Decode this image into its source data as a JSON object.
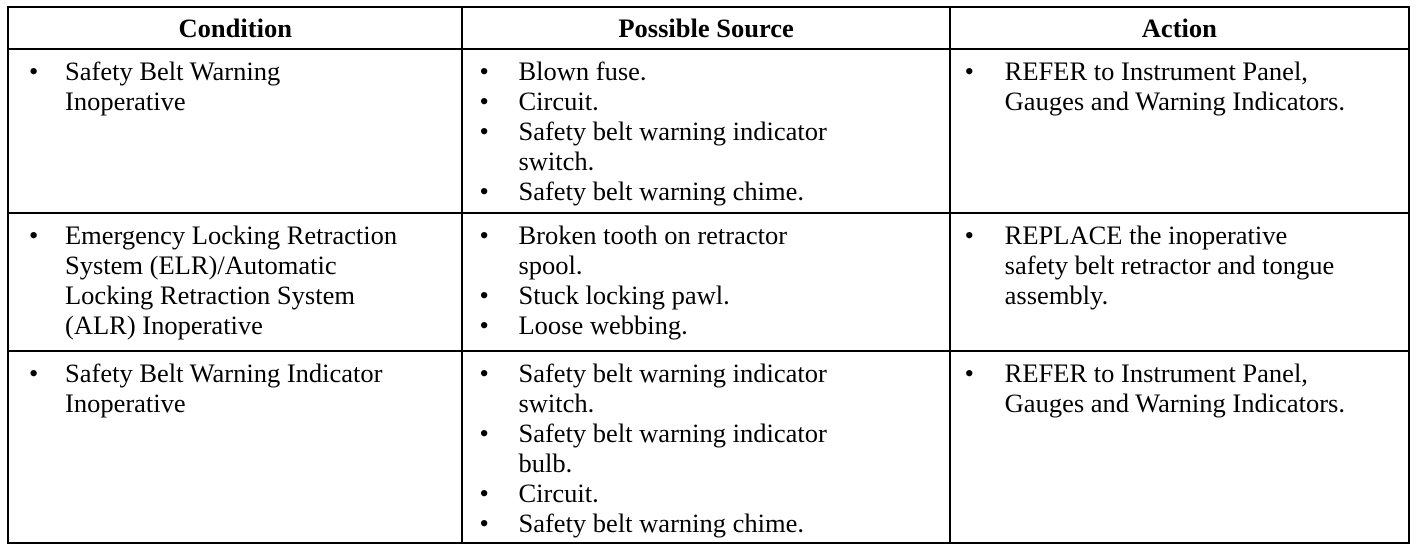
{
  "headers": [
    "Condition",
    "Possible Source",
    "Action"
  ],
  "bullet": "•",
  "rows": [
    {
      "condition": [
        "Safety Belt Warning\nInoperative"
      ],
      "sources": [
        "Blown fuse.",
        "Circuit.",
        "Safety belt warning indicator\nswitch.",
        "Safety belt warning chime."
      ],
      "actions": [
        "REFER to Instrument Panel,\nGauges and Warning Indicators."
      ]
    },
    {
      "condition": [
        "Emergency Locking Retraction\nSystem (ELR)/Automatic\nLocking Retraction System\n(ALR) Inoperative"
      ],
      "sources": [
        "Broken tooth on retractor\nspool.",
        "Stuck locking pawl.",
        "Loose webbing."
      ],
      "actions": [
        "REPLACE the inoperative\nsafety belt retractor and tongue\nassembly."
      ]
    },
    {
      "condition": [
        "Safety Belt Warning Indicator\nInoperative"
      ],
      "sources": [
        "Safety belt warning indicator\nswitch.",
        "Safety belt warning indicator\nbulb.",
        "Circuit.",
        "Safety belt warning chime."
      ],
      "actions": [
        "REFER to Instrument Panel,\nGauges and Warning Indicators."
      ]
    }
  ]
}
